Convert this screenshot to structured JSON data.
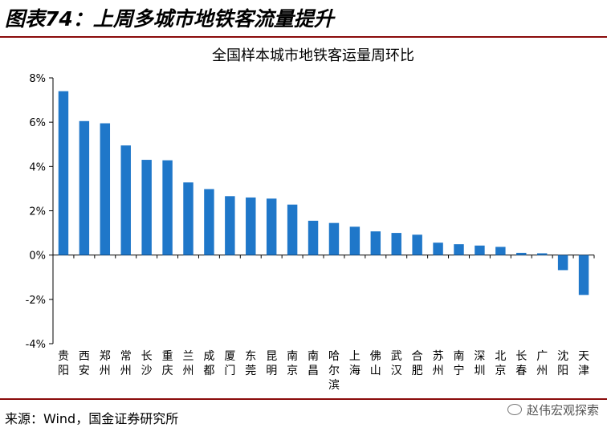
{
  "figure_title": "图表74：上周多城市地铁客流量提升",
  "source": "来源：Wind，国金证券研究所",
  "watermark": "赵伟宏观探索",
  "chart_data": {
    "type": "bar",
    "title": "全国样本城市地铁客运量周环比",
    "xlabel": "",
    "ylabel": "",
    "ylim": [
      -4,
      8
    ],
    "y_ticks": [
      "-4%",
      "-2%",
      "0%",
      "2%",
      "4%",
      "6%",
      "8%"
    ],
    "y_tick_values": [
      -4,
      -2,
      0,
      2,
      4,
      6,
      8
    ],
    "grid": false,
    "legend": "none",
    "bar_color": "#1f77c9",
    "categories": [
      "贵阳",
      "西安",
      "郑州",
      "常州",
      "长沙",
      "重庆",
      "兰州",
      "成都",
      "厦门",
      "东莞",
      "昆明",
      "南京",
      "南昌",
      "哈尔滨",
      "上海",
      "佛山",
      "武汉",
      "合肥",
      "苏州",
      "南宁",
      "深圳",
      "北京",
      "长春",
      "广州",
      "沈阳",
      "天津"
    ],
    "values": [
      7.4,
      6.05,
      5.95,
      4.95,
      4.3,
      4.28,
      3.28,
      2.98,
      2.66,
      2.6,
      2.55,
      2.28,
      1.55,
      1.45,
      1.28,
      1.07,
      1.0,
      0.92,
      0.56,
      0.49,
      0.43,
      0.37,
      0.1,
      0.08,
      -0.68,
      -1.8
    ],
    "unit": "%"
  }
}
